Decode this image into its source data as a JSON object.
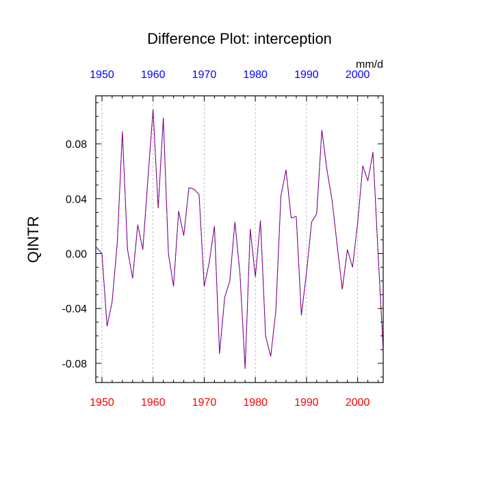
{
  "chart_data": {
    "type": "line",
    "title": "Difference Plot: interception",
    "ylabel": "QINTR",
    "units": "mm/d",
    "xlim": [
      1948.8,
      2005
    ],
    "ylim": [
      -0.094,
      0.115
    ],
    "x_ticks": [
      "1950",
      "1960",
      "1970",
      "1980",
      "1990",
      "2000"
    ],
    "y_ticks": [
      "0.08",
      "0.04",
      "0.00",
      "-0.04",
      "-0.08"
    ],
    "grid": "vertical dashed at decades",
    "colors": {
      "bottom_ticklabels": "#ff0000",
      "top_ticklabels": "#0000ff",
      "series_a": "#0000ff",
      "series_b": "#ff0000"
    },
    "x": [
      1948.8,
      1950,
      1951,
      1952,
      1953,
      1954,
      1955,
      1956,
      1957,
      1958,
      1959,
      1960,
      1961,
      1962,
      1963,
      1964,
      1965,
      1966,
      1967,
      1968,
      1969,
      1970,
      1971,
      1972,
      1973,
      1974,
      1975,
      1976,
      1977,
      1978,
      1979,
      1980,
      1981,
      1982,
      1983,
      1984,
      1985,
      1986,
      1987,
      1988,
      1989,
      1990,
      1991,
      1992,
      1993,
      1994,
      1995,
      1996,
      1997,
      1998,
      1999,
      2000,
      2001,
      2002,
      2003,
      2004,
      2005
    ],
    "series": [
      {
        "values": [
          0.005,
          0.0,
          -0.053,
          -0.035,
          0.008,
          0.089,
          0.003,
          -0.018,
          0.021,
          0.003,
          0.055,
          0.105,
          0.033,
          0.099,
          0.0,
          -0.024,
          0.031,
          0.013,
          0.048,
          0.047,
          0.043,
          -0.024,
          -0.006,
          0.02,
          -0.073,
          -0.032,
          -0.02,
          0.023,
          -0.015,
          -0.084,
          0.018,
          -0.017,
          0.024,
          -0.06,
          -0.075,
          -0.042,
          0.042,
          0.061,
          0.026,
          0.027,
          -0.045,
          -0.014,
          0.023,
          0.029,
          0.09,
          0.061,
          0.039,
          0.006,
          -0.026,
          0.003,
          -0.01,
          0.022,
          0.064,
          0.053,
          0.074,
          0.0,
          -0.07
        ]
      },
      {
        "values": [
          0.005,
          0.0,
          -0.053,
          -0.035,
          0.008,
          0.089,
          0.003,
          -0.018,
          0.021,
          0.003,
          0.055,
          0.105,
          0.033,
          0.099,
          0.0,
          -0.024,
          0.031,
          0.013,
          0.048,
          0.047,
          0.043,
          -0.024,
          -0.006,
          0.02,
          -0.073,
          -0.032,
          -0.02,
          0.023,
          -0.015,
          -0.084,
          0.018,
          -0.017,
          0.024,
          -0.06,
          -0.075,
          -0.042,
          0.042,
          0.061,
          0.026,
          0.027,
          -0.045,
          -0.014,
          0.023,
          0.029,
          0.09,
          0.061,
          0.039,
          0.006,
          -0.026,
          0.003,
          -0.01,
          0.022,
          0.064,
          0.053,
          0.074,
          0.0,
          -0.07
        ]
      }
    ]
  }
}
